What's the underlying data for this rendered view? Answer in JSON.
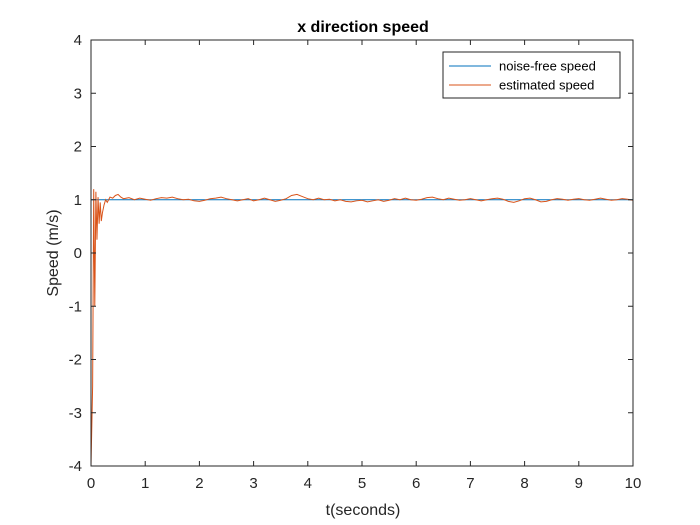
{
  "chart_data": {
    "type": "line",
    "title": "x direction speed",
    "xlabel": "t(seconds)",
    "ylabel": "Speed (m/s)",
    "xlim": [
      0,
      10
    ],
    "ylim": [
      -4,
      4
    ],
    "xticks": [
      0,
      1,
      2,
      3,
      4,
      5,
      6,
      7,
      8,
      9,
      10
    ],
    "yticks": [
      -4,
      -3,
      -2,
      -1,
      0,
      1,
      2,
      3,
      4
    ],
    "grid": false,
    "legend_position": "top-right",
    "series": [
      {
        "name": "noise-free speed",
        "color": "#0072BD",
        "x": [
          0,
          10
        ],
        "y": [
          1,
          1
        ]
      },
      {
        "name": "estimated speed",
        "color": "#D95319",
        "x": [
          0,
          0.03,
          0.05,
          0.07,
          0.09,
          0.11,
          0.13,
          0.15,
          0.17,
          0.19,
          0.21,
          0.24,
          0.27,
          0.3,
          0.35,
          0.4,
          0.45,
          0.5,
          0.55,
          0.6,
          0.7,
          0.8,
          0.9,
          1.0,
          1.1,
          1.2,
          1.3,
          1.4,
          1.5,
          1.6,
          1.7,
          1.8,
          1.9,
          2.0,
          2.1,
          2.2,
          2.3,
          2.4,
          2.5,
          2.6,
          2.7,
          2.8,
          2.9,
          3.0,
          3.1,
          3.2,
          3.3,
          3.4,
          3.5,
          3.6,
          3.7,
          3.8,
          3.9,
          4.0,
          4.1,
          4.2,
          4.3,
          4.4,
          4.5,
          4.6,
          4.7,
          4.8,
          4.9,
          5.0,
          5.1,
          5.2,
          5.3,
          5.4,
          5.5,
          5.6,
          5.7,
          5.8,
          5.9,
          6.0,
          6.1,
          6.2,
          6.3,
          6.4,
          6.5,
          6.6,
          6.7,
          6.8,
          6.9,
          7.0,
          7.1,
          7.2,
          7.3,
          7.4,
          7.5,
          7.6,
          7.7,
          7.8,
          7.9,
          8.0,
          8.1,
          8.2,
          8.3,
          8.4,
          8.5,
          8.6,
          8.7,
          8.8,
          8.9,
          9.0,
          9.1,
          9.2,
          9.3,
          9.4,
          9.5,
          9.6,
          9.7,
          9.8,
          9.9,
          10.0
        ],
        "y": [
          -4,
          -2.5,
          1.2,
          -1.0,
          1.15,
          0.25,
          1.05,
          0.55,
          0.95,
          0.6,
          0.75,
          0.9,
          1.0,
          0.95,
          1.05,
          1.03,
          1.08,
          1.1,
          1.05,
          1.02,
          1.04,
          1.0,
          1.03,
          1.01,
          0.99,
          1.02,
          1.04,
          1.03,
          1.05,
          1.02,
          1.0,
          1.01,
          0.98,
          0.97,
          0.99,
          1.02,
          1.03,
          1.05,
          1.02,
          1.0,
          0.98,
          1.0,
          1.02,
          0.98,
          1.0,
          1.03,
          1.0,
          0.97,
          0.99,
          1.02,
          1.08,
          1.1,
          1.06,
          1.02,
          1.0,
          1.03,
          1.0,
          1.01,
          0.98,
          1.0,
          0.97,
          0.96,
          0.98,
          0.99,
          0.96,
          0.98,
          1.0,
          0.97,
          0.99,
          1.02,
          1.0,
          1.03,
          1.0,
          0.99,
          1.01,
          1.04,
          1.05,
          1.02,
          1.0,
          1.03,
          1.01,
          0.99,
          1.0,
          1.02,
          1.0,
          0.98,
          1.0,
          1.02,
          1.03,
          1.01,
          0.97,
          0.95,
          0.98,
          1.02,
          1.03,
          1.0,
          0.96,
          0.97,
          1.0,
          1.02,
          1.01,
          0.99,
          1.01,
          1.02,
          1.0,
          0.99,
          1.01,
          1.03,
          1.01,
          0.99,
          1.0,
          1.02,
          1.01,
          0.99
        ]
      }
    ]
  }
}
